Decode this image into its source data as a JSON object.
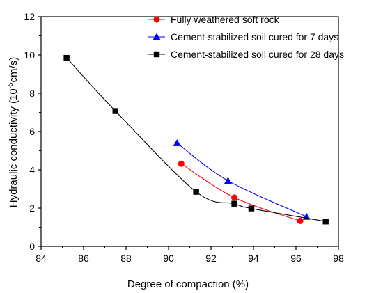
{
  "chart_data": {
    "type": "scatter",
    "title": "",
    "xlabel": "Degree of compaction (%)",
    "ylabel_main": "Hydraulic conductivity (10",
    "ylabel_sup": "-5",
    "ylabel_tail": "cm/s)",
    "xlim": [
      84,
      98
    ],
    "ylim": [
      0,
      12
    ],
    "x_ticks": [
      84,
      86,
      88,
      90,
      92,
      94,
      96,
      98
    ],
    "y_ticks": [
      0,
      2,
      4,
      6,
      8,
      10,
      12
    ],
    "grid": false,
    "legend_position": "top-right",
    "series": [
      {
        "name": "Fully weathered soft rock",
        "color": "#ff0000",
        "marker": "circle",
        "points": [
          [
            90.6,
            4.32
          ],
          [
            93.1,
            2.55
          ],
          [
            96.2,
            1.33
          ]
        ]
      },
      {
        "name": "Cement-stabilized soil cured for 7 days",
        "color": "#0000ff",
        "marker": "triangle",
        "points": [
          [
            90.4,
            5.4
          ],
          [
            92.8,
            3.43
          ],
          [
            96.5,
            1.55
          ]
        ]
      },
      {
        "name": "Cement-stabilized soil cured for 28 days",
        "color": "#000000",
        "marker": "square",
        "points": [
          [
            85.2,
            9.85
          ],
          [
            87.5,
            7.07
          ],
          [
            91.3,
            2.85
          ],
          [
            93.1,
            2.23
          ],
          [
            93.9,
            1.98
          ],
          [
            97.4,
            1.3
          ]
        ]
      }
    ]
  }
}
